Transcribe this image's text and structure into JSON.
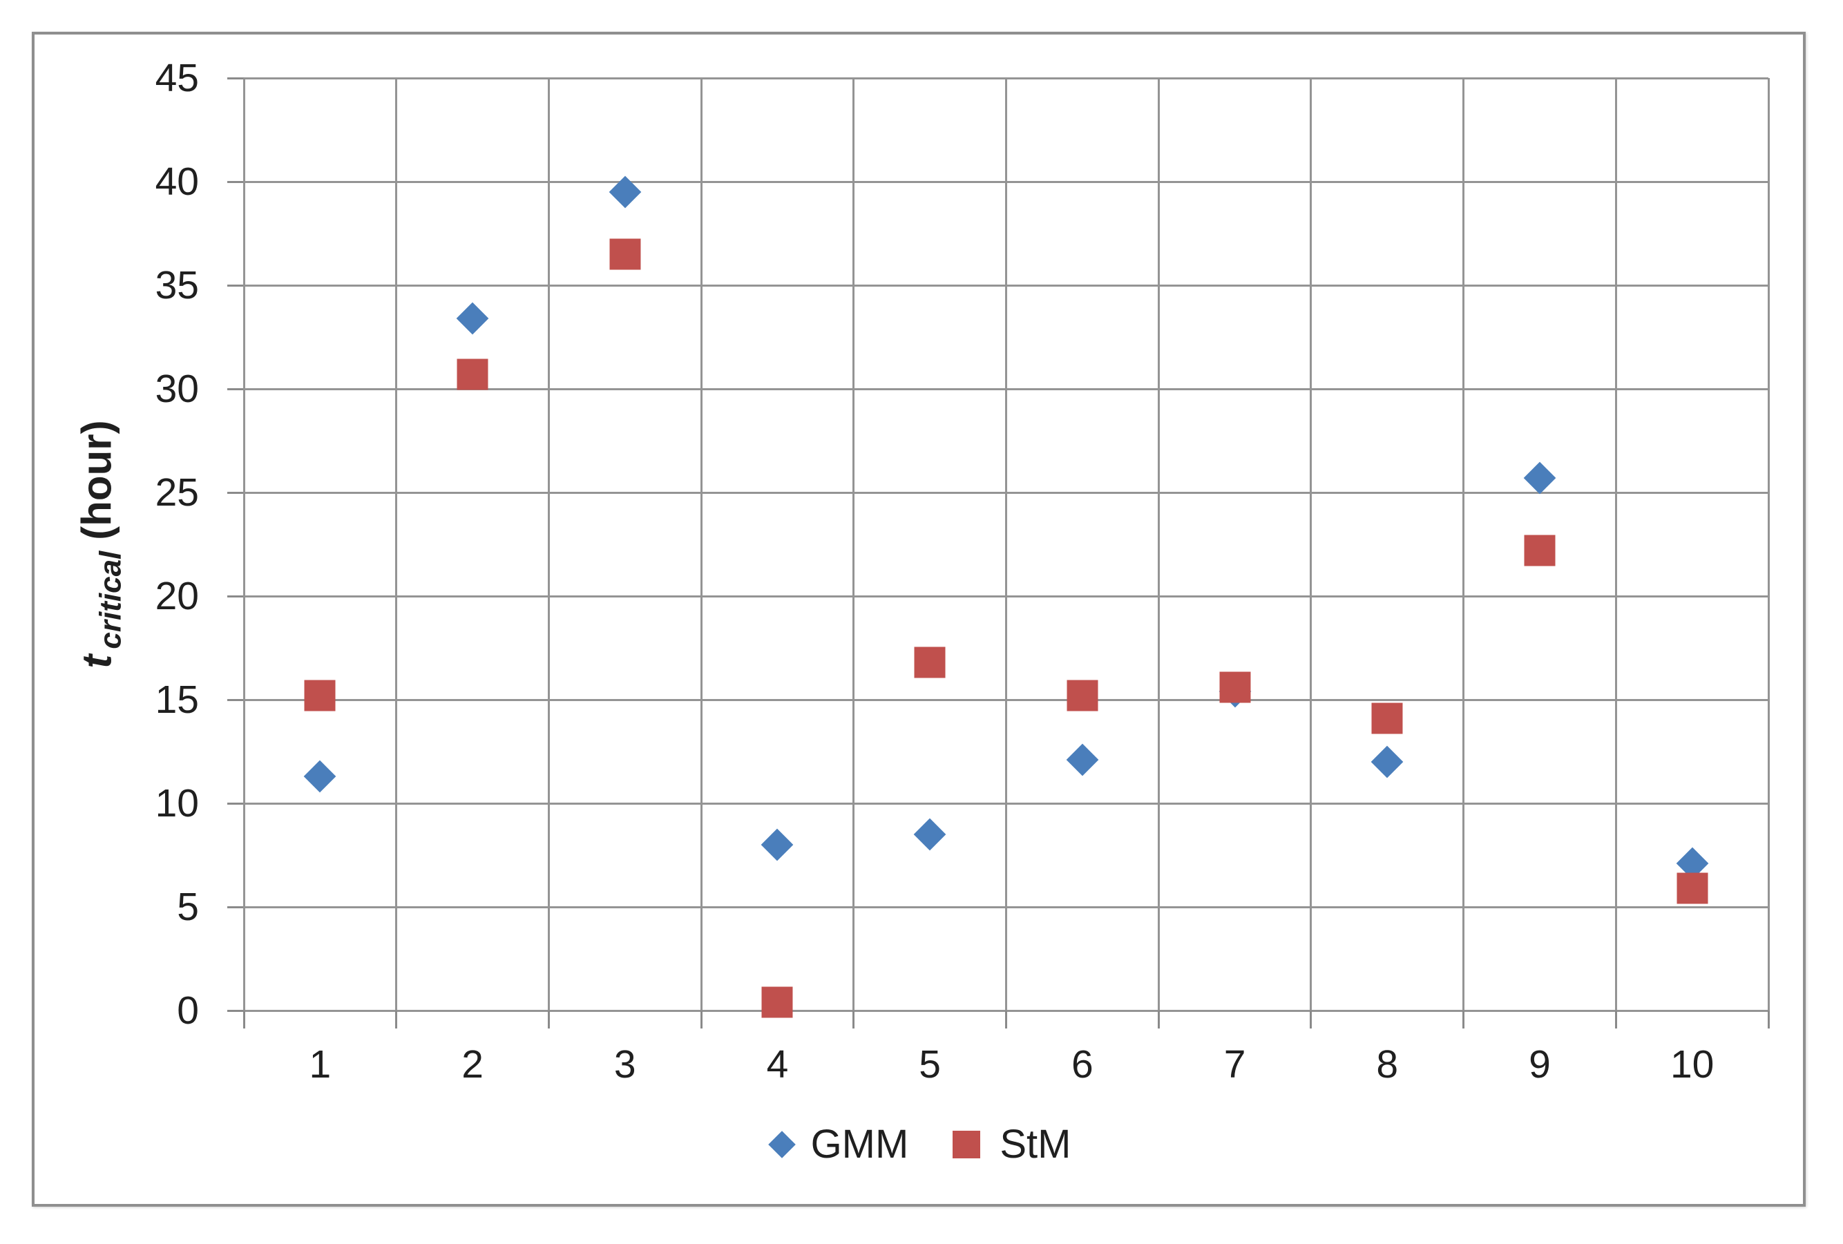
{
  "figure": {
    "background_color": "#ffffff",
    "border_color": "#8f8f8f"
  },
  "chart_data": {
    "type": "scatter",
    "title": "",
    "categories": [
      1,
      2,
      3,
      4,
      5,
      6,
      7,
      8,
      9,
      10
    ],
    "series": [
      {
        "name": "GMM",
        "marker": "diamond",
        "color": "#4a7ebb",
        "values": [
          11.3,
          33.4,
          39.5,
          8.0,
          8.5,
          12.1,
          15.4,
          12.0,
          25.7,
          7.1
        ]
      },
      {
        "name": "StM",
        "marker": "square",
        "color": "#c0504d",
        "values": [
          15.2,
          30.7,
          36.5,
          0.4,
          16.8,
          15.2,
          15.6,
          14.1,
          22.2,
          5.9
        ]
      }
    ],
    "ylabel": {
      "symbol": "t",
      "subscript": "critical",
      "unit": "(hour)"
    },
    "xlabel": "",
    "ylim": [
      0,
      45
    ],
    "ytick_step": 5,
    "yticks": [
      0,
      5,
      10,
      15,
      20,
      25,
      30,
      35,
      40,
      45
    ],
    "grid": true,
    "legend_position": "bottom",
    "gridline_color": "#949494",
    "tick_label_color": "#1f1f1f"
  }
}
